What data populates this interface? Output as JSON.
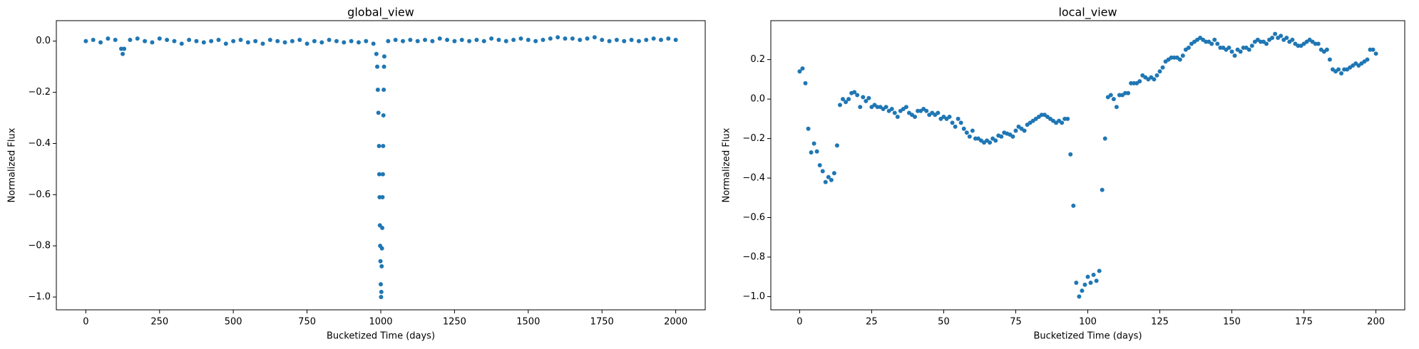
{
  "chart_data": [
    {
      "type": "scatter",
      "title": "global_view",
      "x_label": "Bucketized Time (days)",
      "y_label": "Normalized Flux",
      "x": [
        0,
        25,
        50,
        75,
        100,
        120,
        125,
        130,
        150,
        175,
        200,
        225,
        250,
        275,
        300,
        325,
        350,
        375,
        400,
        425,
        450,
        475,
        500,
        525,
        550,
        575,
        600,
        625,
        650,
        675,
        700,
        725,
        750,
        775,
        800,
        825,
        850,
        875,
        900,
        925,
        950,
        975,
        985,
        988,
        990,
        992,
        994,
        995,
        996,
        997,
        998,
        999,
        1000,
        1001,
        1002,
        1003,
        1004,
        1005,
        1006,
        1007,
        1008,
        1009,
        1010,
        1011,
        1012,
        1025,
        1050,
        1075,
        1100,
        1125,
        1150,
        1175,
        1200,
        1225,
        1250,
        1275,
        1300,
        1325,
        1350,
        1375,
        1400,
        1425,
        1450,
        1475,
        1500,
        1525,
        1550,
        1575,
        1600,
        1625,
        1650,
        1675,
        1700,
        1725,
        1750,
        1775,
        1800,
        1825,
        1850,
        1875,
        1900,
        1925,
        1950,
        1975,
        2000
      ],
      "series": [
        {
          "color": "#1f77b4",
          "values": [
            0.0,
            0.005,
            -0.005,
            0.01,
            0.005,
            -0.03,
            -0.05,
            -0.03,
            0.005,
            0.01,
            0.0,
            -0.005,
            0.01,
            0.005,
            0.0,
            -0.01,
            0.005,
            0.0,
            -0.005,
            0.0,
            0.005,
            -0.01,
            0.0,
            0.005,
            -0.005,
            0.0,
            -0.01,
            0.005,
            0.0,
            -0.005,
            0.0,
            0.005,
            -0.01,
            0.0,
            -0.005,
            0.005,
            0.0,
            -0.005,
            0.0,
            -0.005,
            0.0,
            -0.01,
            -0.05,
            -0.1,
            -0.19,
            -0.28,
            -0.41,
            -0.52,
            -0.61,
            -0.72,
            -0.8,
            -0.86,
            -0.95,
            -1.0,
            -0.98,
            -0.88,
            -0.81,
            -0.73,
            -0.61,
            -0.52,
            -0.41,
            -0.29,
            -0.19,
            -0.1,
            -0.06,
            0.0,
            0.005,
            0.0,
            0.005,
            0.0,
            0.005,
            0.0,
            0.01,
            0.005,
            0.0,
            0.005,
            0.0,
            0.005,
            0.0,
            0.01,
            0.005,
            0.0,
            0.005,
            0.01,
            0.005,
            0.0,
            0.005,
            0.01,
            0.015,
            0.01,
            0.01,
            0.005,
            0.01,
            0.015,
            0.005,
            0.0,
            0.005,
            0.0,
            0.005,
            0.0,
            0.005,
            0.01,
            0.005,
            0.01,
            0.005
          ]
        }
      ],
      "xlim": [
        -100,
        2100
      ],
      "ylim": [
        -1.05,
        0.08
      ],
      "xticks": [
        0,
        250,
        500,
        750,
        1000,
        1250,
        1500,
        1750,
        2000
      ],
      "yticks": [
        {
          "value": -1.0,
          "label": "−1.0"
        },
        {
          "value": -0.8,
          "label": "−0.8"
        },
        {
          "value": -0.6,
          "label": "−0.6"
        },
        {
          "value": -0.4,
          "label": "−0.4"
        },
        {
          "value": -0.2,
          "label": "−0.2"
        },
        {
          "value": 0.0,
          "label": "0.0"
        }
      ]
    },
    {
      "type": "scatter",
      "title": "local_view",
      "x_label": "Bucketized Time (days)",
      "y_label": "Normalized Flux",
      "x": [
        0,
        1,
        2,
        3,
        4,
        5,
        6,
        7,
        8,
        9,
        10,
        11,
        12,
        13,
        14,
        15,
        16,
        17,
        18,
        19,
        20,
        21,
        22,
        23,
        24,
        25,
        26,
        27,
        28,
        29,
        30,
        31,
        32,
        33,
        34,
        35,
        36,
        37,
        38,
        39,
        40,
        41,
        42,
        43,
        44,
        45,
        46,
        47,
        48,
        49,
        50,
        51,
        52,
        53,
        54,
        55,
        56,
        57,
        58,
        59,
        60,
        61,
        62,
        63,
        64,
        65,
        66,
        67,
        68,
        69,
        70,
        71,
        72,
        73,
        74,
        75,
        76,
        77,
        78,
        79,
        80,
        81,
        82,
        83,
        84,
        85,
        86,
        87,
        88,
        89,
        90,
        91,
        92,
        93,
        94,
        95,
        96,
        97,
        98,
        99,
        100,
        101,
        102,
        103,
        104,
        105,
        106,
        107,
        108,
        109,
        110,
        111,
        112,
        113,
        114,
        115,
        116,
        117,
        118,
        119,
        120,
        121,
        122,
        123,
        124,
        125,
        126,
        127,
        128,
        129,
        130,
        131,
        132,
        133,
        134,
        135,
        136,
        137,
        138,
        139,
        140,
        141,
        142,
        143,
        144,
        145,
        146,
        147,
        148,
        149,
        150,
        151,
        152,
        153,
        154,
        155,
        156,
        157,
        158,
        159,
        160,
        161,
        162,
        163,
        164,
        165,
        166,
        167,
        168,
        169,
        170,
        171,
        172,
        173,
        174,
        175,
        176,
        177,
        178,
        179,
        180,
        181,
        182,
        183,
        184,
        185,
        186,
        187,
        188,
        189,
        190,
        191,
        192,
        193,
        194,
        195,
        196,
        197,
        198,
        199,
        200
      ],
      "series": [
        {
          "color": "#1f77b4",
          "values": [
            0.14,
            0.155,
            0.08,
            -0.15,
            -0.27,
            -0.225,
            -0.265,
            -0.335,
            -0.365,
            -0.42,
            -0.395,
            -0.41,
            -0.375,
            -0.235,
            -0.03,
            0.0,
            -0.015,
            0.0,
            0.03,
            0.035,
            0.02,
            -0.04,
            0.01,
            -0.01,
            0.005,
            -0.04,
            -0.03,
            -0.04,
            -0.04,
            -0.05,
            -0.04,
            -0.06,
            -0.05,
            -0.07,
            -0.09,
            -0.06,
            -0.05,
            -0.04,
            -0.07,
            -0.08,
            -0.09,
            -0.06,
            -0.06,
            -0.05,
            -0.06,
            -0.08,
            -0.07,
            -0.08,
            -0.07,
            -0.1,
            -0.09,
            -0.1,
            -0.09,
            -0.12,
            -0.14,
            -0.1,
            -0.12,
            -0.15,
            -0.17,
            -0.19,
            -0.16,
            -0.2,
            -0.2,
            -0.21,
            -0.22,
            -0.21,
            -0.22,
            -0.2,
            -0.21,
            -0.185,
            -0.19,
            -0.17,
            -0.175,
            -0.18,
            -0.19,
            -0.16,
            -0.14,
            -0.15,
            -0.16,
            -0.13,
            -0.12,
            -0.11,
            -0.1,
            -0.09,
            -0.08,
            -0.08,
            -0.09,
            -0.1,
            -0.11,
            -0.12,
            -0.11,
            -0.12,
            -0.1,
            -0.1,
            -0.28,
            -0.54,
            -0.93,
            -1.0,
            -0.97,
            -0.94,
            -0.9,
            -0.93,
            -0.89,
            -0.92,
            -0.87,
            -0.46,
            -0.2,
            0.01,
            0.02,
            0.0,
            -0.04,
            0.02,
            0.02,
            0.03,
            0.03,
            0.08,
            0.08,
            0.08,
            0.09,
            0.12,
            0.11,
            0.1,
            0.11,
            0.1,
            0.12,
            0.14,
            0.16,
            0.19,
            0.2,
            0.21,
            0.21,
            0.21,
            0.2,
            0.22,
            0.25,
            0.26,
            0.28,
            0.29,
            0.3,
            0.31,
            0.3,
            0.29,
            0.29,
            0.28,
            0.3,
            0.28,
            0.26,
            0.26,
            0.25,
            0.26,
            0.24,
            0.22,
            0.25,
            0.24,
            0.26,
            0.26,
            0.25,
            0.27,
            0.29,
            0.3,
            0.29,
            0.29,
            0.28,
            0.3,
            0.31,
            0.33,
            0.31,
            0.32,
            0.3,
            0.31,
            0.29,
            0.3,
            0.28,
            0.27,
            0.27,
            0.28,
            0.29,
            0.3,
            0.29,
            0.28,
            0.28,
            0.25,
            0.24,
            0.25,
            0.2,
            0.15,
            0.14,
            0.15,
            0.13,
            0.15,
            0.15,
            0.16,
            0.17,
            0.18,
            0.17,
            0.18,
            0.19,
            0.2,
            0.25,
            0.25,
            0.23
          ]
        }
      ],
      "xlim": [
        -10,
        210
      ],
      "ylim": [
        -1.067,
        0.397
      ],
      "xticks": [
        0,
        25,
        50,
        75,
        100,
        125,
        150,
        175,
        200
      ],
      "yticks": [
        {
          "value": -1.0,
          "label": "−1.0"
        },
        {
          "value": -0.8,
          "label": "−0.8"
        },
        {
          "value": -0.6,
          "label": "−0.6"
        },
        {
          "value": -0.4,
          "label": "−0.4"
        },
        {
          "value": -0.2,
          "label": "−0.2"
        },
        {
          "value": 0.0,
          "label": "0.0"
        },
        {
          "value": 0.2,
          "label": "0.2"
        }
      ]
    }
  ]
}
